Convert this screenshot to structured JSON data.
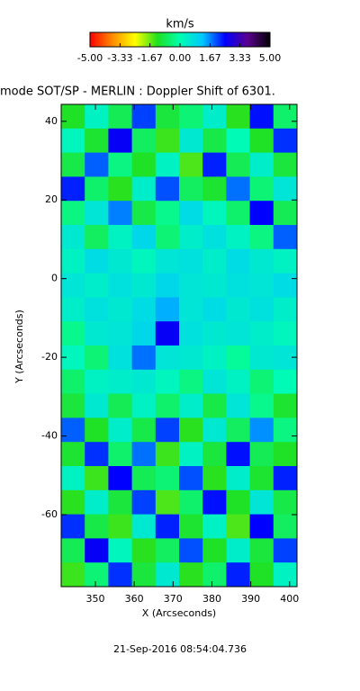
{
  "chart_data": {
    "type": "heatmap",
    "title": "mode SOT/SP - MERLIN : Doppler Shift of 6301.",
    "colorbar_title": "km/s",
    "x_label": "X (Arcseconds)",
    "y_label": "Y (Arcseconds)",
    "timestamp": "21-Sep-2016 08:54:04.736",
    "xlim": [
      341.2,
      401.9
    ],
    "ylim": [
      -78.3,
      44.3
    ],
    "xticks": [
      350,
      360,
      370,
      380,
      390,
      400
    ],
    "yticks": [
      40,
      20,
      0,
      -20,
      -40,
      -60
    ],
    "zlim": [
      -5,
      5
    ],
    "colorbar_ticks": [
      {
        "value": -5,
        "label": "-5.00"
      },
      {
        "value": -3.33,
        "label": "-3.33"
      },
      {
        "value": -1.67,
        "label": "-1.67"
      },
      {
        "value": 0,
        "label": "0.00"
      },
      1.67,
      3.33,
      {
        "value": 5,
        "label": "5.00"
      }
    ],
    "colorscale": [
      "#ff0000",
      "#ff8c00",
      "#ffff00",
      "#20e020",
      "#00ffb0",
      "#00c8ff",
      "#0000ff",
      "#5a0090",
      "#000000"
    ],
    "z": [
      [
        -1.2,
        0.3,
        -0.8,
        2.1,
        -1.0,
        -0.5,
        0.4,
        -1.3,
        2.4,
        -0.6
      ],
      [
        0.2,
        -1.1,
        2.6,
        -0.7,
        -1.4,
        0.5,
        -0.9,
        0.1,
        -1.2,
        2.2
      ],
      [
        -0.9,
        1.9,
        -0.4,
        -1.2,
        0.3,
        -1.5,
        2.3,
        -0.8,
        0.4,
        -1.0
      ],
      [
        2.3,
        -0.6,
        -1.3,
        0.4,
        2.0,
        -0.7,
        -1.1,
        1.8,
        -0.5,
        0.6
      ],
      [
        -0.4,
        0.6,
        1.7,
        -0.9,
        -0.3,
        0.8,
        0.2,
        -0.6,
        2.5,
        -0.8
      ],
      [
        0.5,
        -0.7,
        0.3,
        0.9,
        -0.5,
        0.4,
        0.7,
        0.3,
        -0.4,
        1.9
      ],
      [
        0.3,
        0.8,
        0.5,
        0.2,
        0.6,
        0.7,
        0.4,
        0.8,
        0.5,
        0.3
      ],
      [
        0.6,
        0.4,
        0.7,
        0.5,
        0.9,
        0.6,
        0.5,
        0.7,
        0.6,
        0.8
      ],
      [
        0.4,
        0.7,
        0.5,
        0.8,
        1.4,
        0.6,
        0.8,
        0.5,
        0.7,
        0.4
      ],
      [
        -0.3,
        0.5,
        0.6,
        0.9,
        2.6,
        0.7,
        0.5,
        0.6,
        0.4,
        0.2
      ],
      [
        0.2,
        -0.5,
        0.7,
        1.8,
        0.6,
        0.5,
        0.3,
        -0.2,
        0.5,
        0.6
      ],
      [
        -0.6,
        0.3,
        0.4,
        0.5,
        0.2,
        -0.4,
        0.6,
        0.3,
        -0.5,
        0.1
      ],
      [
        -1.0,
        0.5,
        -0.8,
        0.3,
        -0.6,
        0.4,
        -0.9,
        0.6,
        -0.3,
        -1.1
      ],
      [
        1.9,
        -1.2,
        0.4,
        -0.9,
        2.1,
        -1.3,
        0.5,
        -0.7,
        1.6,
        -0.4
      ],
      [
        -1.1,
        2.2,
        -0.6,
        1.8,
        -1.4,
        0.3,
        -1.0,
        2.4,
        -0.8,
        -1.2
      ],
      [
        0.3,
        -1.4,
        2.5,
        -0.8,
        -0.5,
        2.0,
        -1.3,
        0.4,
        -1.1,
        2.3
      ],
      [
        -1.3,
        0.4,
        -1.0,
        2.1,
        -1.5,
        -0.6,
        2.4,
        -1.2,
        0.6,
        -0.9
      ],
      [
        2.2,
        -0.9,
        -1.4,
        0.5,
        2.3,
        -1.1,
        0.3,
        -1.5,
        2.5,
        -0.7
      ],
      [
        -0.8,
        2.6,
        0.2,
        -1.3,
        -0.7,
        2.0,
        -1.2,
        0.4,
        -1.0,
        2.1
      ],
      [
        -1.4,
        -0.5,
        2.2,
        -1.0,
        0.5,
        -1.3,
        -0.6,
        2.3,
        -1.2,
        0.3
      ]
    ]
  }
}
